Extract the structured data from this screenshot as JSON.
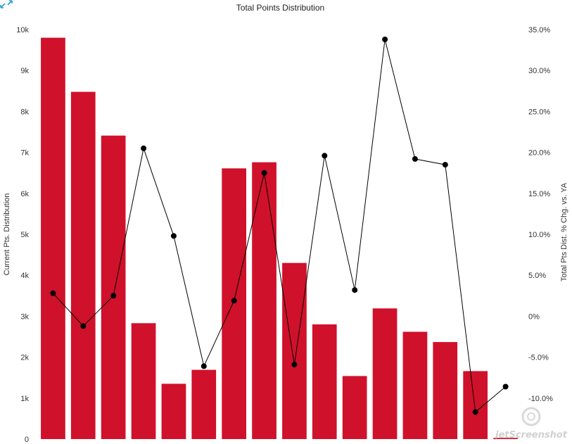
{
  "chart_data": {
    "type": "bar",
    "title": "Total Points Distribution",
    "ylabel": "Current Pts. Distribution",
    "y2label": "Total Pts Dist. % Chg. vs. YA",
    "ylim": [
      0,
      10000
    ],
    "y2lim": [
      -15,
      35
    ],
    "yticks": [
      "0",
      "1k",
      "2k",
      "3k",
      "4k",
      "5k",
      "6k",
      "7k",
      "8k",
      "9k",
      "10k"
    ],
    "y2ticks": [
      "-10.0%",
      "-5.0%",
      "0%",
      "5.0%",
      "10.0%",
      "15.0%",
      "20.0%",
      "25.0%",
      "30.0%",
      "35.0%"
    ],
    "series": [
      {
        "type": "bar",
        "color": "#d0112b",
        "values": [
          9800,
          8480,
          7410,
          2830,
          1350,
          1690,
          6610,
          6760,
          4300,
          2800,
          1540,
          3190,
          2620,
          2370,
          1660,
          30
        ]
      },
      {
        "type": "line",
        "axis": "right",
        "color": "#000000",
        "values": [
          2.8,
          -1.2,
          2.5,
          20.5,
          9.8,
          -6.1,
          1.9,
          17.5,
          -5.9,
          19.6,
          3.2,
          33.8,
          19.2,
          18.5,
          -11.7,
          -8.6
        ]
      }
    ],
    "grid": false,
    "legend": "none"
  },
  "watermark": "jetScreenshot"
}
